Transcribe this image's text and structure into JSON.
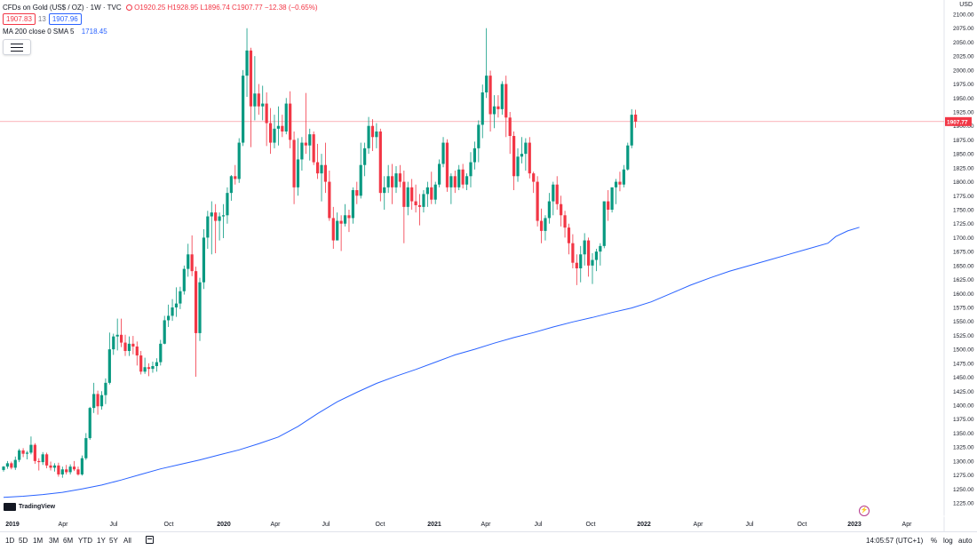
{
  "legend": {
    "symbol": "CFDs on Gold (US$ / OZ) · 1W · TVC",
    "ohlc": "O1920.25 H1928.95 L1896.74 C1907.77 −12.38 (−0.65%)"
  },
  "bid_box": "1907.83",
  "spread": "13",
  "ask_box": "1907.96",
  "ma_indicator": {
    "label": "MA 200 close 0 SMA 5",
    "value": "1718.45"
  },
  "currency": "USD",
  "current_price_label": "1907.77",
  "watermark": "TradingView",
  "y_ticks": [
    "2100.00",
    "2075.00",
    "2050.00",
    "2025.00",
    "2000.00",
    "1975.00",
    "1950.00",
    "1925.00",
    "1900.00",
    "1875.00",
    "1850.00",
    "1825.00",
    "1800.00",
    "1775.00",
    "1750.00",
    "1725.00",
    "1700.00",
    "1675.00",
    "1650.00",
    "1625.00",
    "1600.00",
    "1575.00",
    "1550.00",
    "1525.00",
    "1500.00",
    "1475.00",
    "1450.00",
    "1425.00",
    "1400.00",
    "1375.00",
    "1350.00",
    "1325.00",
    "1300.00",
    "1275.00",
    "1250.00",
    "1225.00"
  ],
  "x_ticks": [
    {
      "label": "2019",
      "bold": true
    },
    {
      "label": "Apr"
    },
    {
      "label": "Jul"
    },
    {
      "label": "Oct"
    },
    {
      "label": "2020",
      "bold": true
    },
    {
      "label": "Apr"
    },
    {
      "label": "Jul"
    },
    {
      "label": "Oct"
    },
    {
      "label": "2021",
      "bold": true
    },
    {
      "label": "Apr"
    },
    {
      "label": "Jul"
    },
    {
      "label": "Oct"
    },
    {
      "label": "2022",
      "bold": true
    },
    {
      "label": "Apr"
    },
    {
      "label": "Jul"
    },
    {
      "label": "Oct"
    },
    {
      "label": "2023",
      "bold": true
    },
    {
      "label": "Apr"
    }
  ],
  "timeframes": [
    "1D",
    "5D",
    "1M",
    "3M",
    "6M",
    "YTD",
    "1Y",
    "5Y",
    "All"
  ],
  "clock": "14:05:57 (UTC+1)",
  "scale_options": [
    "%",
    "log",
    "auto"
  ],
  "colors": {
    "up": "#089981",
    "down": "#f23645",
    "ma": "#2962ff",
    "priceline": "#f23645"
  },
  "chart_data": {
    "type": "candlestick",
    "interval": "1W",
    "ylim": [
      1225,
      2100
    ],
    "x_range": [
      "2019-01",
      "2023-05"
    ],
    "ma_series": {
      "name": "MA 200 close 0 SMA 5",
      "points": [
        [
          0,
          1235
        ],
        [
          5,
          1237
        ],
        [
          10,
          1240
        ],
        [
          15,
          1244
        ],
        [
          20,
          1250
        ],
        [
          25,
          1257
        ],
        [
          30,
          1266
        ],
        [
          35,
          1276
        ],
        [
          40,
          1286
        ],
        [
          45,
          1294
        ],
        [
          50,
          1302
        ],
        [
          55,
          1311
        ],
        [
          60,
          1320
        ],
        [
          65,
          1331
        ],
        [
          70,
          1343
        ],
        [
          75,
          1362
        ],
        [
          80,
          1385
        ],
        [
          85,
          1406
        ],
        [
          90,
          1423
        ],
        [
          95,
          1439
        ],
        [
          100,
          1452
        ],
        [
          105,
          1464
        ],
        [
          110,
          1477
        ],
        [
          115,
          1490
        ],
        [
          120,
          1500
        ],
        [
          125,
          1511
        ],
        [
          130,
          1521
        ],
        [
          135,
          1530
        ],
        [
          140,
          1540
        ],
        [
          145,
          1549
        ],
        [
          150,
          1557
        ],
        [
          155,
          1566
        ],
        [
          160,
          1574
        ],
        [
          165,
          1585
        ],
        [
          170,
          1600
        ],
        [
          175,
          1615
        ],
        [
          180,
          1628
        ],
        [
          185,
          1640
        ],
        [
          190,
          1650
        ],
        [
          195,
          1660
        ],
        [
          200,
          1670
        ],
        [
          205,
          1680
        ],
        [
          210,
          1690
        ],
        [
          212,
          1702
        ],
        [
          215,
          1712
        ],
        [
          218,
          1718.45
        ]
      ]
    },
    "candles": [
      [
        1284,
        1291,
        1281,
        1290
      ],
      [
        1290,
        1300,
        1286,
        1296
      ],
      [
        1296,
        1299,
        1285,
        1288
      ],
      [
        1288,
        1308,
        1284,
        1302
      ],
      [
        1302,
        1322,
        1298,
        1319
      ],
      [
        1319,
        1323,
        1307,
        1313
      ],
      [
        1313,
        1318,
        1303,
        1315
      ],
      [
        1315,
        1344,
        1312,
        1329
      ],
      [
        1329,
        1332,
        1295,
        1300
      ],
      [
        1300,
        1305,
        1283,
        1298
      ],
      [
        1298,
        1316,
        1293,
        1312
      ],
      [
        1312,
        1315,
        1287,
        1292
      ],
      [
        1292,
        1299,
        1283,
        1288
      ],
      [
        1288,
        1296,
        1281,
        1292
      ],
      [
        1292,
        1297,
        1272,
        1276
      ],
      [
        1276,
        1290,
        1270,
        1285
      ],
      [
        1285,
        1293,
        1276,
        1280
      ],
      [
        1280,
        1294,
        1276,
        1290
      ],
      [
        1290,
        1300,
        1282,
        1285
      ],
      [
        1285,
        1290,
        1274,
        1276
      ],
      [
        1276,
        1310,
        1274,
        1305
      ],
      [
        1305,
        1350,
        1302,
        1341
      ],
      [
        1341,
        1397,
        1338,
        1395
      ],
      [
        1395,
        1440,
        1386,
        1420
      ],
      [
        1420,
        1426,
        1383,
        1398
      ],
      [
        1398,
        1425,
        1392,
        1418
      ],
      [
        1418,
        1448,
        1402,
        1440
      ],
      [
        1440,
        1530,
        1437,
        1500
      ],
      [
        1500,
        1528,
        1490,
        1523
      ],
      [
        1523,
        1555,
        1498,
        1526
      ],
      [
        1526,
        1555,
        1504,
        1512
      ],
      [
        1512,
        1526,
        1488,
        1497
      ],
      [
        1497,
        1523,
        1488,
        1510
      ],
      [
        1510,
        1524,
        1491,
        1505
      ],
      [
        1505,
        1514,
        1471,
        1489
      ],
      [
        1489,
        1497,
        1455,
        1460
      ],
      [
        1460,
        1485,
        1456,
        1468
      ],
      [
        1468,
        1475,
        1452,
        1465
      ],
      [
        1465,
        1478,
        1458,
        1470
      ],
      [
        1470,
        1484,
        1460,
        1477
      ],
      [
        1477,
        1517,
        1471,
        1510
      ],
      [
        1510,
        1560,
        1509,
        1552
      ],
      [
        1552,
        1580,
        1540,
        1560
      ],
      [
        1560,
        1590,
        1551,
        1575
      ],
      [
        1575,
        1611,
        1558,
        1582
      ],
      [
        1582,
        1612,
        1572,
        1604
      ],
      [
        1604,
        1650,
        1598,
        1644
      ],
      [
        1644,
        1689,
        1630,
        1670
      ],
      [
        1670,
        1704,
        1631,
        1640
      ],
      [
        1640,
        1648,
        1451,
        1529
      ],
      [
        1529,
        1628,
        1515,
        1620
      ],
      [
        1620,
        1715,
        1608,
        1700
      ],
      [
        1700,
        1748,
        1680,
        1738
      ],
      [
        1738,
        1765,
        1670,
        1745
      ],
      [
        1745,
        1760,
        1672,
        1730
      ],
      [
        1730,
        1745,
        1695,
        1738
      ],
      [
        1738,
        1760,
        1699,
        1740
      ],
      [
        1740,
        1790,
        1725,
        1780
      ],
      [
        1780,
        1812,
        1766,
        1810
      ],
      [
        1810,
        1830,
        1795,
        1805
      ],
      [
        1805,
        1878,
        1798,
        1870
      ],
      [
        1870,
        2000,
        1864,
        1990
      ],
      [
        1990,
        2075,
        1952,
        2035
      ],
      [
        2035,
        2040,
        1862,
        1935
      ],
      [
        1935,
        2025,
        1910,
        1958
      ],
      [
        1958,
        1975,
        1920,
        1935
      ],
      [
        1935,
        1972,
        1910,
        1940
      ],
      [
        1940,
        1960,
        1864,
        1905
      ],
      [
        1905,
        1932,
        1850,
        1870
      ],
      [
        1870,
        1920,
        1860,
        1895
      ],
      [
        1895,
        1935,
        1865,
        1900
      ],
      [
        1900,
        1920,
        1880,
        1890
      ],
      [
        1890,
        1950,
        1885,
        1940
      ],
      [
        1940,
        1962,
        1860,
        1875
      ],
      [
        1875,
        1890,
        1760,
        1790
      ],
      [
        1790,
        1878,
        1775,
        1840
      ],
      [
        1840,
        1880,
        1820,
        1870
      ],
      [
        1870,
        1959,
        1850,
        1865
      ],
      [
        1865,
        1895,
        1838,
        1885
      ],
      [
        1885,
        1890,
        1830,
        1835
      ],
      [
        1835,
        1868,
        1805,
        1815
      ],
      [
        1815,
        1850,
        1765,
        1830
      ],
      [
        1830,
        1870,
        1780,
        1800
      ],
      [
        1800,
        1820,
        1730,
        1735
      ],
      [
        1735,
        1755,
        1680,
        1695
      ],
      [
        1695,
        1745,
        1700,
        1730
      ],
      [
        1730,
        1740,
        1676,
        1725
      ],
      [
        1725,
        1760,
        1720,
        1740
      ],
      [
        1740,
        1750,
        1710,
        1735
      ],
      [
        1735,
        1790,
        1725,
        1785
      ],
      [
        1785,
        1800,
        1760,
        1775
      ],
      [
        1775,
        1870,
        1770,
        1830
      ],
      [
        1830,
        1870,
        1810,
        1860
      ],
      [
        1860,
        1916,
        1850,
        1900
      ],
      [
        1900,
        1912,
        1855,
        1880
      ],
      [
        1880,
        1905,
        1860,
        1890
      ],
      [
        1890,
        1895,
        1765,
        1780
      ],
      [
        1780,
        1810,
        1750,
        1790
      ],
      [
        1790,
        1830,
        1780,
        1810
      ],
      [
        1810,
        1832,
        1760,
        1790
      ],
      [
        1790,
        1828,
        1780,
        1815
      ],
      [
        1815,
        1830,
        1790,
        1800
      ],
      [
        1800,
        1820,
        1690,
        1755
      ],
      [
        1755,
        1800,
        1740,
        1790
      ],
      [
        1790,
        1805,
        1750,
        1765
      ],
      [
        1765,
        1795,
        1745,
        1758
      ],
      [
        1758,
        1778,
        1722,
        1755
      ],
      [
        1755,
        1785,
        1745,
        1778
      ],
      [
        1778,
        1800,
        1755,
        1790
      ],
      [
        1790,
        1818,
        1760,
        1768
      ],
      [
        1768,
        1800,
        1760,
        1795
      ],
      [
        1795,
        1840,
        1790,
        1832
      ],
      [
        1832,
        1880,
        1826,
        1870
      ],
      [
        1870,
        1876,
        1782,
        1790
      ],
      [
        1790,
        1815,
        1760,
        1810
      ],
      [
        1810,
        1820,
        1780,
        1790
      ],
      [
        1790,
        1830,
        1785,
        1822
      ],
      [
        1822,
        1832,
        1788,
        1795
      ],
      [
        1795,
        1815,
        1785,
        1810
      ],
      [
        1810,
        1853,
        1790,
        1835
      ],
      [
        1835,
        1872,
        1822,
        1860
      ],
      [
        1860,
        1910,
        1835,
        1902
      ],
      [
        1902,
        1974,
        1878,
        1960
      ],
      [
        1960,
        2075,
        1950,
        1990
      ],
      [
        1990,
        1999,
        1890,
        1921
      ],
      [
        1921,
        1955,
        1896,
        1935
      ],
      [
        1935,
        1955,
        1915,
        1930
      ],
      [
        1930,
        1980,
        1920,
        1975
      ],
      [
        1975,
        1990,
        1880,
        1915
      ],
      [
        1915,
        1925,
        1850,
        1882
      ],
      [
        1882,
        1890,
        1785,
        1810
      ],
      [
        1810,
        1860,
        1800,
        1845
      ],
      [
        1845,
        1880,
        1833,
        1850
      ],
      [
        1850,
        1878,
        1820,
        1870
      ],
      [
        1870,
        1880,
        1806,
        1815
      ],
      [
        1815,
        1818,
        1780,
        1800
      ],
      [
        1800,
        1810,
        1720,
        1730
      ],
      [
        1730,
        1752,
        1690,
        1712
      ],
      [
        1712,
        1740,
        1695,
        1735
      ],
      [
        1735,
        1780,
        1725,
        1765
      ],
      [
        1765,
        1800,
        1740,
        1795
      ],
      [
        1795,
        1810,
        1750,
        1760
      ],
      [
        1760,
        1775,
        1720,
        1740
      ],
      [
        1740,
        1748,
        1700,
        1718
      ],
      [
        1718,
        1725,
        1670,
        1690
      ],
      [
        1690,
        1706,
        1645,
        1655
      ],
      [
        1655,
        1670,
        1615,
        1645
      ],
      [
        1645,
        1685,
        1620,
        1670
      ],
      [
        1670,
        1708,
        1650,
        1695
      ],
      [
        1695,
        1700,
        1630,
        1650
      ],
      [
        1650,
        1672,
        1617,
        1660
      ],
      [
        1660,
        1680,
        1640,
        1675
      ],
      [
        1675,
        1690,
        1650,
        1685
      ],
      [
        1685,
        1765,
        1681,
        1765
      ],
      [
        1765,
        1785,
        1730,
        1750
      ],
      [
        1750,
        1790,
        1745,
        1790
      ],
      [
        1790,
        1805,
        1760,
        1800
      ],
      [
        1800,
        1818,
        1783,
        1795
      ],
      [
        1795,
        1830,
        1790,
        1822
      ],
      [
        1822,
        1870,
        1820,
        1865
      ],
      [
        1865,
        1930,
        1860,
        1920
      ],
      [
        1920.25,
        1928.95,
        1896.74,
        1907.77
      ]
    ]
  }
}
